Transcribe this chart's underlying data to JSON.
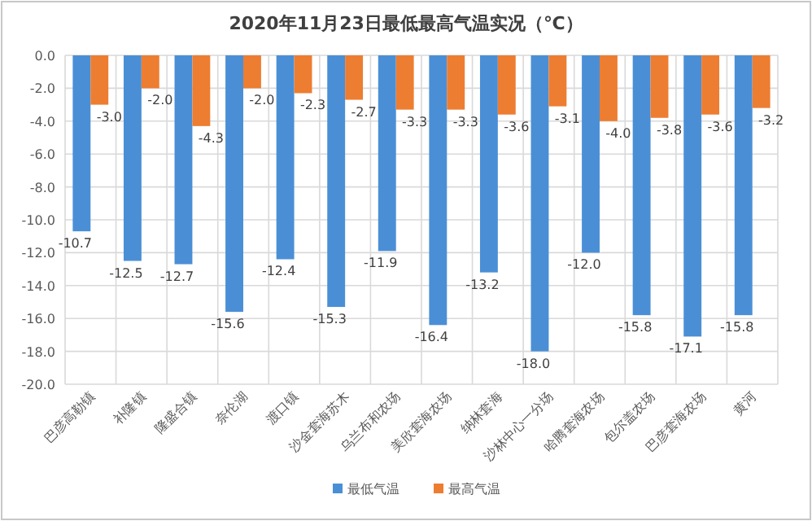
{
  "chart_data": {
    "type": "bar",
    "title": "2020年11月23日最低最高气温实况（℃）",
    "categories": [
      "巴彦高勒镇",
      "补隆镇",
      "隆盛合镇",
      "奈伦湖",
      "渡口镇",
      "沙金套海苏木",
      "乌兰布和农场",
      "美欣套海农场",
      "纳林套海",
      "沙林中心一分场",
      "哈腾套海农场",
      "包尔盖农场",
      "巴彦套海农场",
      "黄河"
    ],
    "series": [
      {
        "name": "最低气温",
        "color": "#4a8fd6",
        "values": [
          -10.7,
          -12.5,
          -12.7,
          -15.6,
          -12.4,
          -15.3,
          -11.9,
          -16.4,
          -13.2,
          -18.0,
          -12.0,
          -15.8,
          -17.1,
          -15.8
        ],
        "value_labels": [
          "-10.7",
          "-12.5",
          "-12.7",
          "-15.6",
          "-12.4",
          "-15.3",
          "-11.9",
          "-16.4",
          "-13.2",
          "-18.0",
          "-12.0",
          "-15.8",
          "-17.1",
          "-15.8"
        ]
      },
      {
        "name": "最高气温",
        "color": "#ed7d31",
        "values": [
          -3.0,
          -2.0,
          -4.3,
          -2.0,
          -2.3,
          -2.7,
          -3.3,
          -3.3,
          -3.6,
          -3.1,
          -4.0,
          -3.8,
          -3.6,
          -3.2
        ],
        "value_labels": [
          "-3.0",
          "-2.0",
          "-4.3",
          "-2.0",
          "-2.3",
          "-2.7",
          "-3.3",
          "-3.3",
          "-3.6",
          "-3.1",
          "-4.0",
          "-3.8",
          "-3.6",
          "-3.2"
        ]
      }
    ],
    "ylim": [
      -20,
      0
    ],
    "yticks": [
      {
        "value": 0,
        "label": "0.0"
      },
      {
        "value": -2,
        "label": "-2.0"
      },
      {
        "value": -4,
        "label": "-4.0"
      },
      {
        "value": -6,
        "label": "-6.0"
      },
      {
        "value": -8,
        "label": "-8.0"
      },
      {
        "value": -10,
        "label": "-10.0"
      },
      {
        "value": -12,
        "label": "-12.0"
      },
      {
        "value": -14,
        "label": "-14.0"
      },
      {
        "value": -16,
        "label": "-16.0"
      },
      {
        "value": -18,
        "label": "-18.0"
      },
      {
        "value": -20,
        "label": "-20.0"
      }
    ],
    "grid": true,
    "legend": "bottom"
  }
}
